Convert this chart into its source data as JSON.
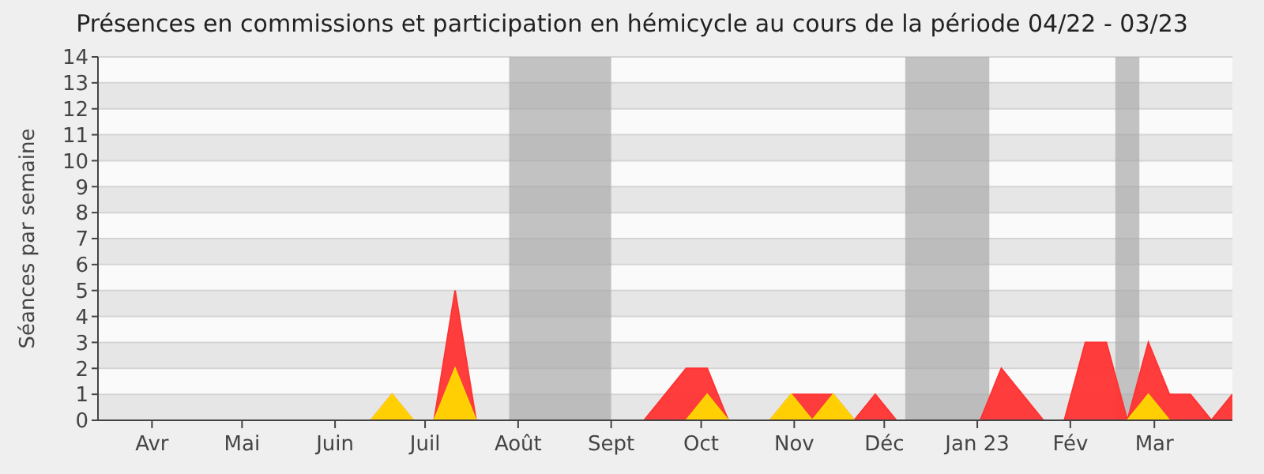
{
  "chart_data": {
    "type": "area",
    "title": "Présences en commissions et participation en hémicycle au cours de la période 04/22 - 03/23",
    "ylabel": "Séances par semaine",
    "x": [
      "2022-03-28",
      "2022-04-04",
      "2022-04-11",
      "2022-04-18",
      "2022-04-25",
      "2022-05-02",
      "2022-05-09",
      "2022-05-16",
      "2022-05-23",
      "2022-05-30",
      "2022-06-06",
      "2022-06-13",
      "2022-06-20",
      "2022-06-27",
      "2022-07-04",
      "2022-07-11",
      "2022-07-18",
      "2022-07-25",
      "2022-08-01",
      "2022-08-08",
      "2022-08-15",
      "2022-08-22",
      "2022-08-29",
      "2022-09-05",
      "2022-09-12",
      "2022-09-19",
      "2022-09-26",
      "2022-10-03",
      "2022-10-10",
      "2022-10-17",
      "2022-10-24",
      "2022-10-31",
      "2022-11-07",
      "2022-11-14",
      "2022-11-21",
      "2022-11-28",
      "2022-12-05",
      "2022-12-12",
      "2022-12-19",
      "2022-12-26",
      "2023-01-02",
      "2023-01-09",
      "2023-01-16",
      "2023-01-23",
      "2023-01-30",
      "2023-02-06",
      "2023-02-13",
      "2023-02-20",
      "2023-02-27",
      "2023-03-06",
      "2023-03-13",
      "2023-03-20",
      "2023-03-27",
      "2023-04-03",
      "2023-04-10"
    ],
    "series": [
      {
        "color": "#ff3333",
        "values": [
          0,
          0,
          0,
          0,
          0,
          0,
          0,
          0,
          0,
          0,
          0,
          0,
          0,
          0,
          1,
          0,
          0,
          5,
          0,
          0,
          0,
          0,
          0,
          0,
          0,
          0,
          0,
          1,
          2,
          2,
          0,
          0,
          0,
          1,
          1,
          1,
          0,
          1,
          0,
          0,
          0,
          0,
          0,
          2,
          1,
          0,
          0,
          3,
          3,
          0,
          3,
          1,
          1,
          0,
          1
        ]
      },
      {
        "color": "#ffd700",
        "values": [
          0,
          0,
          0,
          0,
          0,
          0,
          0,
          0,
          0,
          0,
          0,
          0,
          0,
          0,
          1,
          0,
          0,
          2,
          0,
          0,
          0,
          0,
          0,
          0,
          0,
          0,
          0,
          0,
          0,
          1,
          0,
          0,
          0,
          1,
          0,
          1,
          0,
          0,
          0,
          0,
          0,
          0,
          0,
          0,
          0,
          0,
          0,
          0,
          0,
          0,
          1,
          0,
          0,
          0,
          0
        ]
      }
    ],
    "xlim": [
      "2022-03-28",
      "2023-04-10"
    ],
    "xticks": [
      {
        "value": "2022-04-15",
        "label": "Avr"
      },
      {
        "value": "2022-05-15",
        "label": "Mai"
      },
      {
        "value": "2022-06-15",
        "label": "Juin"
      },
      {
        "value": "2022-07-15",
        "label": "Juil"
      },
      {
        "value": "2022-08-15",
        "label": "Août"
      },
      {
        "value": "2022-09-15",
        "label": "Sept"
      },
      {
        "value": "2022-10-15",
        "label": "Oct"
      },
      {
        "value": "2022-11-15",
        "label": "Nov"
      },
      {
        "value": "2022-12-15",
        "label": "Déc"
      },
      {
        "value": "2023-01-15",
        "label": "Jan 23"
      },
      {
        "value": "2023-02-15",
        "label": "Fév"
      },
      {
        "value": "2023-03-15",
        "label": "Mar"
      }
    ],
    "ylim": [
      0,
      14
    ],
    "yticks": [
      0,
      1,
      2,
      3,
      4,
      5,
      6,
      7,
      8,
      9,
      10,
      11,
      12,
      13,
      14
    ],
    "grid": "y",
    "bands": [
      {
        "axis": "x",
        "from": "2022-08-12",
        "to": "2022-09-15",
        "color": "#aaaaaa"
      },
      {
        "axis": "x",
        "from": "2022-12-22",
        "to": "2023-01-19",
        "color": "#aaaaaa"
      },
      {
        "axis": "x",
        "from": "2023-03-02",
        "to": "2023-03-10",
        "color": "#aaaaaa"
      }
    ]
  }
}
